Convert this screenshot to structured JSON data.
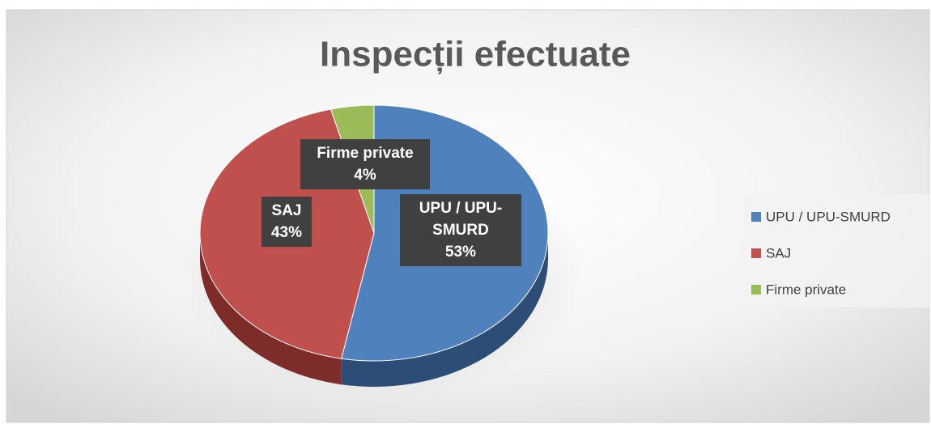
{
  "chart_data": {
    "type": "pie",
    "title": "Inspecții efectuate",
    "categories": [
      "UPU / UPU-SMURD",
      "SAJ",
      "Firme private"
    ],
    "values": [
      53,
      43,
      4
    ],
    "value_labels": [
      "53%",
      "43%",
      "4%"
    ],
    "colors": [
      "#4f81bd",
      "#c0504d",
      "#9bbb59"
    ],
    "side_colors": [
      "#2c4d75",
      "#7d2c2a",
      "#5f7530"
    ],
    "legend": "right"
  }
}
